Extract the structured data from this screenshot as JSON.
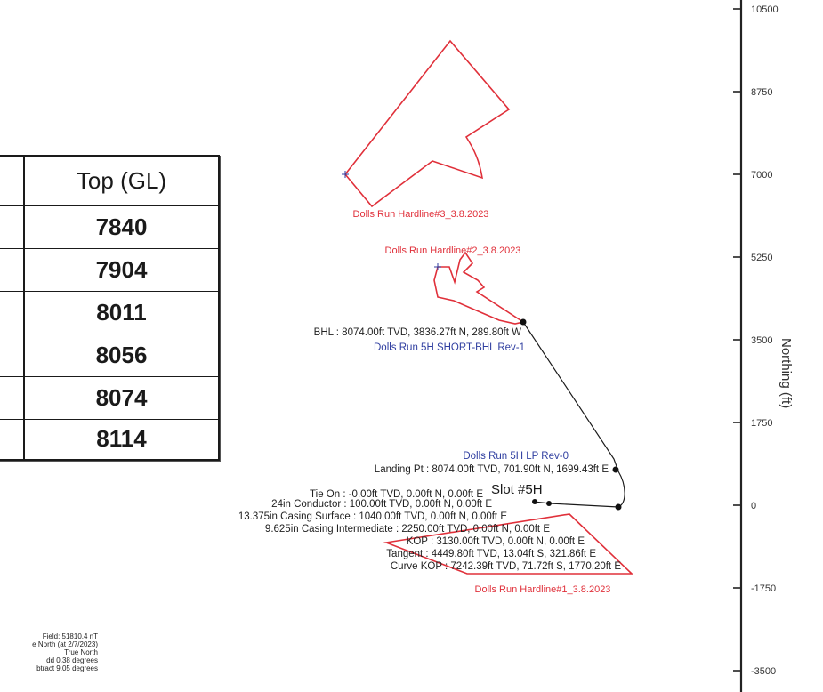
{
  "table": {
    "header": "Top (GL)",
    "rows": [
      "7840",
      "7904",
      "8011",
      "8056",
      "8074",
      "8114"
    ]
  },
  "axis": {
    "title": "Northing (ft)",
    "ticks": [
      {
        "label": "10500",
        "value": 10500
      },
      {
        "label": "8750",
        "value": 8750
      },
      {
        "label": "7000",
        "value": 7000
      },
      {
        "label": "5250",
        "value": 5250
      },
      {
        "label": "3500",
        "value": 3500
      },
      {
        "label": "1750",
        "value": 1750
      },
      {
        "label": "0",
        "value": 0
      },
      {
        "label": "-1750",
        "value": -1750
      },
      {
        "label": "-3500",
        "value": -3500
      }
    ]
  },
  "hardlines": {
    "h3": "Dolls Run Hardline#3_3.8.2023",
    "h2": "Dolls Run Hardline#2_3.8.2023",
    "h1": "Dolls Run Hardline#1_3.8.2023"
  },
  "targets": {
    "bhl_target": "Dolls Run 5H SHORT-BHL Rev-1",
    "lp_target": "Dolls Run 5H LP Rev-0"
  },
  "slot": "Slot #5H",
  "annotations": {
    "bhl": "BHL : 8074.00ft TVD, 3836.27ft N, 289.80ft W",
    "landing": "Landing Pt : 8074.00ft TVD, 701.90ft N, 1699.43ft E",
    "tie_on": "Tie On : -0.00ft TVD, 0.00ft N, 0.00ft E",
    "conductor": "24in Conductor : 100.00ft TVD, 0.00ft N, 0.00ft E",
    "surface": "13.375in Casing Surface : 1040.00ft TVD, 0.00ft N, 0.00ft E",
    "intermediate": "9.625in Casing Intermediate : 2250.00ft TVD, 0.00ft N, 0.00ft E",
    "kop": "KOP : 3130.00ft TVD, 0.00ft N, 0.00ft E",
    "tangent": "Tangent : 4449.80ft TVD, 13.04ft S, 321.86ft E",
    "curve_kop": "Curve KOP : 7242.39ft TVD, 71.72ft S, 1770.20ft E"
  },
  "notes": [
    "Field: 51810.4 nT",
    "e North (at 2/7/2023)",
    "True North",
    "dd 0.38 degrees",
    "btract 9.05 degrees"
  ],
  "colors": {
    "hardline": "#e0303a",
    "target": "#2f3ea0",
    "well": "#1a1a1a",
    "axis": "#222222"
  }
}
